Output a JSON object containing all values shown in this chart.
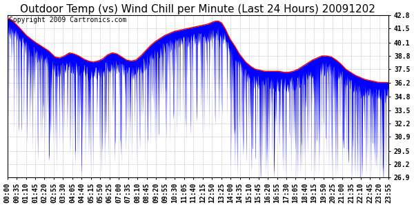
{
  "title": "Outdoor Temp (vs) Wind Chill per Minute (Last 24 Hours) 20091202",
  "copyright_text": "Copyright 2009 Cartronics.com",
  "yticks": [
    26.9,
    28.2,
    29.5,
    30.9,
    32.2,
    33.5,
    34.8,
    36.2,
    37.5,
    38.8,
    40.1,
    41.5,
    42.8
  ],
  "ymin": 26.9,
  "ymax": 42.8,
  "xtick_labels": [
    "00:00",
    "00:35",
    "01:10",
    "01:45",
    "02:20",
    "02:55",
    "03:30",
    "04:05",
    "04:40",
    "05:15",
    "05:50",
    "06:25",
    "07:00",
    "07:35",
    "08:10",
    "08:45",
    "09:20",
    "09:55",
    "10:30",
    "11:05",
    "11:40",
    "12:15",
    "12:50",
    "13:25",
    "14:00",
    "14:35",
    "15:10",
    "15:45",
    "16:20",
    "16:55",
    "17:30",
    "18:05",
    "18:40",
    "19:15",
    "19:50",
    "20:25",
    "21:00",
    "21:35",
    "22:10",
    "22:45",
    "23:20",
    "23:55"
  ],
  "outdoor_temp_color": "#FF0000",
  "wind_chill_color": "#0000FF",
  "background_color": "#FFFFFF",
  "grid_color": "#BBBBBB",
  "title_fontsize": 11,
  "copyright_fontsize": 7,
  "tick_fontsize": 7,
  "outdoor_temp_points": [
    [
      0,
      42.5
    ],
    [
      0.3,
      42.3
    ],
    [
      0.8,
      41.5
    ],
    [
      1.2,
      40.8
    ],
    [
      1.7,
      40.2
    ],
    [
      2.2,
      39.7
    ],
    [
      2.6,
      39.3
    ],
    [
      3.0,
      38.7
    ],
    [
      3.3,
      38.6
    ],
    [
      3.6,
      38.8
    ],
    [
      3.9,
      39.1
    ],
    [
      4.2,
      39.0
    ],
    [
      4.5,
      38.8
    ],
    [
      4.8,
      38.5
    ],
    [
      5.1,
      38.3
    ],
    [
      5.4,
      38.2
    ],
    [
      5.7,
      38.3
    ],
    [
      6.0,
      38.5
    ],
    [
      6.3,
      38.9
    ],
    [
      6.6,
      39.1
    ],
    [
      6.9,
      39.0
    ],
    [
      7.2,
      38.7
    ],
    [
      7.5,
      38.4
    ],
    [
      7.8,
      38.3
    ],
    [
      8.1,
      38.4
    ],
    [
      8.4,
      38.8
    ],
    [
      8.7,
      39.3
    ],
    [
      9.0,
      39.8
    ],
    [
      9.3,
      40.2
    ],
    [
      9.6,
      40.5
    ],
    [
      9.9,
      40.8
    ],
    [
      10.2,
      41.0
    ],
    [
      10.5,
      41.2
    ],
    [
      10.8,
      41.3
    ],
    [
      11.1,
      41.4
    ],
    [
      11.4,
      41.5
    ],
    [
      11.7,
      41.6
    ],
    [
      12.0,
      41.7
    ],
    [
      12.3,
      41.8
    ],
    [
      12.6,
      41.9
    ],
    [
      12.9,
      42.1
    ],
    [
      13.1,
      42.2
    ],
    [
      13.3,
      42.2
    ],
    [
      13.5,
      42.0
    ],
    [
      13.7,
      41.5
    ],
    [
      14.0,
      40.5
    ],
    [
      14.3,
      39.8
    ],
    [
      14.6,
      39.0
    ],
    [
      15.0,
      38.2
    ],
    [
      15.3,
      37.8
    ],
    [
      15.6,
      37.5
    ],
    [
      15.9,
      37.4
    ],
    [
      16.2,
      37.3
    ],
    [
      16.5,
      37.3
    ],
    [
      16.8,
      37.3
    ],
    [
      17.1,
      37.3
    ],
    [
      17.4,
      37.2
    ],
    [
      17.7,
      37.2
    ],
    [
      18.0,
      37.3
    ],
    [
      18.3,
      37.5
    ],
    [
      18.6,
      37.8
    ],
    [
      18.9,
      38.1
    ],
    [
      19.2,
      38.4
    ],
    [
      19.5,
      38.6
    ],
    [
      19.8,
      38.8
    ],
    [
      20.1,
      38.8
    ],
    [
      20.4,
      38.7
    ],
    [
      20.7,
      38.4
    ],
    [
      21.0,
      38.0
    ],
    [
      21.3,
      37.5
    ],
    [
      21.6,
      37.2
    ],
    [
      21.9,
      36.9
    ],
    [
      22.2,
      36.7
    ],
    [
      22.5,
      36.5
    ],
    [
      22.8,
      36.4
    ],
    [
      23.1,
      36.3
    ],
    [
      23.4,
      36.2
    ],
    [
      23.7,
      36.2
    ],
    [
      24.0,
      36.2
    ]
  ]
}
